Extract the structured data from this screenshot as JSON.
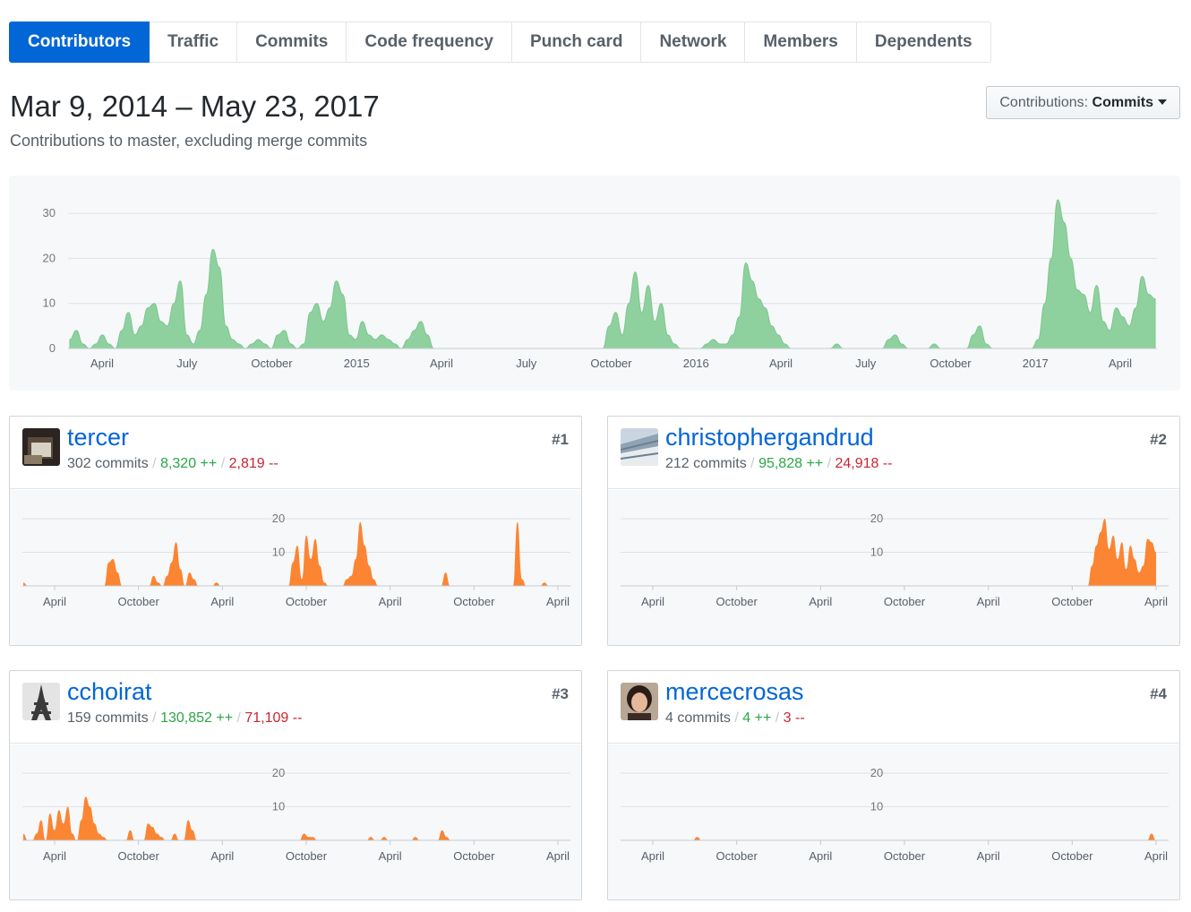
{
  "tabs": [
    "Contributors",
    "Traffic",
    "Commits",
    "Code frequency",
    "Punch card",
    "Network",
    "Members",
    "Dependents"
  ],
  "header": {
    "title": "Mar 9, 2014 – May 23, 2017",
    "subtitle": "Contributions to master, excluding merge commits",
    "button_prefix": "Contributions:",
    "button_value": "Commits"
  },
  "colors": {
    "main_fill": "#8fd19e",
    "main_stroke": "#7cc68e",
    "user_fill": "#fb8532",
    "accent": "#0366d6"
  },
  "chart_data": [
    {
      "type": "area",
      "ylim": [
        0,
        35
      ],
      "yticks": [
        0,
        10,
        20,
        30
      ],
      "xtick_labels": [
        "April",
        "July",
        "October",
        "2015",
        "April",
        "July",
        "October",
        "2016",
        "April",
        "July",
        "October",
        "2017",
        "April"
      ],
      "series": [
        {
          "values": [
            2,
            4,
            1,
            0,
            1,
            3,
            1,
            0,
            4,
            8,
            3,
            5,
            9,
            10,
            6,
            5,
            10,
            15,
            3,
            1,
            4,
            12,
            22,
            18,
            5,
            2,
            1,
            0,
            1,
            2,
            1,
            0,
            3,
            4,
            1,
            0,
            1,
            8,
            10,
            6,
            9,
            15,
            12,
            3,
            2,
            6,
            3,
            2,
            3,
            2,
            1,
            0,
            2,
            4,
            6,
            3,
            0,
            0,
            0,
            0,
            0,
            0,
            0,
            0,
            0,
            0,
            0,
            0,
            0,
            0,
            0,
            0,
            0,
            0,
            0,
            0,
            0,
            0,
            0,
            0,
            0,
            0,
            0,
            5,
            8,
            3,
            10,
            17,
            8,
            14,
            6,
            10,
            3,
            1,
            0,
            0,
            0,
            0,
            1,
            2,
            1,
            1,
            3,
            7,
            19,
            15,
            11,
            9,
            5,
            3,
            1,
            0,
            0,
            0,
            0,
            0,
            0,
            0,
            1,
            0,
            0,
            0,
            0,
            0,
            0,
            0,
            2,
            3,
            1,
            0,
            0,
            0,
            0,
            1,
            0,
            0,
            0,
            0,
            0,
            3,
            5,
            1,
            0,
            0,
            0,
            0,
            0,
            0,
            0,
            2,
            10,
            20,
            33,
            28,
            20,
            13,
            12,
            8,
            14,
            6,
            4,
            9,
            7,
            5,
            9,
            16,
            12,
            11
          ]
        }
      ]
    },
    {
      "type": "area",
      "ylim": [
        0,
        20
      ],
      "yticks": [
        10,
        20
      ],
      "xtick_labels": [
        "April",
        "October",
        "April",
        "October",
        "April",
        "October",
        "April"
      ],
      "series": [
        {
          "values": [
            1,
            0,
            0,
            0,
            0,
            0,
            0,
            0,
            0,
            0,
            0,
            0,
            0,
            0,
            0,
            0,
            0,
            0,
            0,
            7,
            8,
            4,
            0,
            0,
            0,
            0,
            0,
            0,
            0,
            3,
            1,
            0,
            3,
            7,
            13,
            5,
            0,
            4,
            2,
            0,
            0,
            0,
            0,
            1,
            0,
            0,
            0,
            0,
            0,
            0,
            0,
            0,
            0,
            0,
            0,
            0,
            0,
            0,
            0,
            0,
            7,
            12,
            2,
            15,
            8,
            14,
            6,
            1,
            0,
            0,
            0,
            0,
            2,
            3,
            8,
            19,
            12,
            6,
            2,
            0,
            0,
            0,
            0,
            0,
            0,
            0,
            0,
            0,
            0,
            0,
            0,
            0,
            0,
            0,
            4,
            0,
            0,
            0,
            0,
            0,
            0,
            0,
            0,
            0,
            0,
            0,
            0,
            0,
            0,
            0,
            19,
            2,
            0,
            0,
            0,
            0,
            1,
            0,
            0,
            0
          ]
        }
      ]
    },
    {
      "type": "area",
      "ylim": [
        0,
        20
      ],
      "yticks": [
        10,
        20
      ],
      "xtick_labels": [
        "April",
        "October",
        "April",
        "October",
        "April",
        "October",
        "April"
      ],
      "series": [
        {
          "values": [
            0,
            0,
            0,
            0,
            0,
            0,
            0,
            0,
            0,
            0,
            0,
            0,
            0,
            0,
            0,
            0,
            0,
            0,
            0,
            0,
            0,
            0,
            0,
            0,
            0,
            0,
            0,
            0,
            0,
            0,
            0,
            0,
            0,
            0,
            0,
            0,
            0,
            0,
            0,
            0,
            0,
            0,
            0,
            0,
            0,
            0,
            0,
            0,
            0,
            0,
            0,
            0,
            0,
            0,
            0,
            0,
            0,
            0,
            0,
            0,
            0,
            0,
            0,
            0,
            0,
            0,
            0,
            0,
            0,
            0,
            0,
            0,
            0,
            0,
            0,
            0,
            0,
            0,
            0,
            0,
            0,
            0,
            0,
            0,
            0,
            0,
            0,
            0,
            0,
            0,
            0,
            0,
            0,
            0,
            0,
            0,
            0,
            0,
            0,
            0,
            0,
            0,
            0,
            0,
            0,
            0,
            0,
            0,
            0,
            0,
            6,
            12,
            16,
            20,
            11,
            15,
            8,
            13,
            5,
            12,
            8,
            4,
            6,
            14,
            13,
            10
          ]
        }
      ]
    },
    {
      "type": "area",
      "ylim": [
        0,
        20
      ],
      "yticks": [
        10,
        20
      ],
      "xtick_labels": [
        "April",
        "October",
        "April",
        "October",
        "April",
        "October",
        "April"
      ],
      "series": [
        {
          "values": [
            2,
            0,
            0,
            2,
            6,
            0,
            8,
            3,
            9,
            5,
            10,
            2,
            0,
            6,
            13,
            10,
            5,
            2,
            1,
            0,
            0,
            0,
            0,
            0,
            3,
            0,
            0,
            0,
            5,
            4,
            2,
            1,
            0,
            0,
            2,
            0,
            0,
            6,
            3,
            0,
            0,
            0,
            0,
            0,
            0,
            0,
            0,
            0,
            0,
            0,
            0,
            0,
            0,
            0,
            0,
            0,
            0,
            0,
            0,
            0,
            0,
            0,
            0,
            2,
            1,
            1,
            0,
            0,
            0,
            0,
            0,
            0,
            0,
            0,
            0,
            0,
            0,
            0,
            1,
            0,
            0,
            1,
            0,
            0,
            0,
            0,
            0,
            0,
            1,
            0,
            0,
            0,
            0,
            0,
            3,
            1,
            0,
            0,
            0,
            0,
            0,
            0,
            0,
            0,
            0,
            0,
            0,
            0,
            0,
            0,
            0,
            0,
            0,
            0,
            0,
            0,
            0,
            0,
            0,
            0,
            0
          ]
        }
      ]
    },
    {
      "type": "area",
      "ylim": [
        0,
        20
      ],
      "yticks": [
        10,
        20
      ],
      "xtick_labels": [
        "April",
        "October",
        "April",
        "October",
        "April",
        "October",
        "April"
      ],
      "series": [
        {
          "values": [
            0,
            0,
            0,
            0,
            0,
            0,
            0,
            0,
            0,
            0,
            0,
            0,
            0,
            0,
            0,
            0,
            0,
            1,
            0,
            0,
            0,
            0,
            0,
            0,
            0,
            0,
            0,
            0,
            0,
            0,
            0,
            0,
            0,
            0,
            0,
            0,
            0,
            0,
            0,
            0,
            0,
            0,
            0,
            0,
            0,
            0,
            0,
            0,
            0,
            0,
            0,
            0,
            0,
            0,
            0,
            0,
            0,
            0,
            0,
            0,
            0,
            0,
            0,
            0,
            0,
            0,
            0,
            0,
            0,
            0,
            0,
            0,
            0,
            0,
            0,
            0,
            0,
            0,
            0,
            0,
            0,
            0,
            0,
            0,
            0,
            0,
            0,
            0,
            0,
            0,
            0,
            0,
            0,
            0,
            0,
            0,
            0,
            0,
            0,
            0,
            0,
            0,
            0,
            0,
            0,
            0,
            0,
            0,
            0,
            0,
            0,
            0,
            0,
            0,
            0,
            0,
            0,
            0,
            0,
            2,
            0
          ]
        }
      ]
    }
  ],
  "contributors": [
    {
      "login": "tercer",
      "commits": "302 commits",
      "additions": "8,320 ++",
      "deletions": "2,819 --",
      "rank": "#1"
    },
    {
      "login": "christophergandrud",
      "commits": "212 commits",
      "additions": "95,828 ++",
      "deletions": "24,918 --",
      "rank": "#2"
    },
    {
      "login": "cchoirat",
      "commits": "159 commits",
      "additions": "130,852 ++",
      "deletions": "71,109 --",
      "rank": "#3"
    },
    {
      "login": "mercecrosas",
      "commits": "4 commits",
      "additions": "4 ++",
      "deletions": "3 --",
      "rank": "#4"
    }
  ],
  "separators": {
    "slash": "/"
  }
}
